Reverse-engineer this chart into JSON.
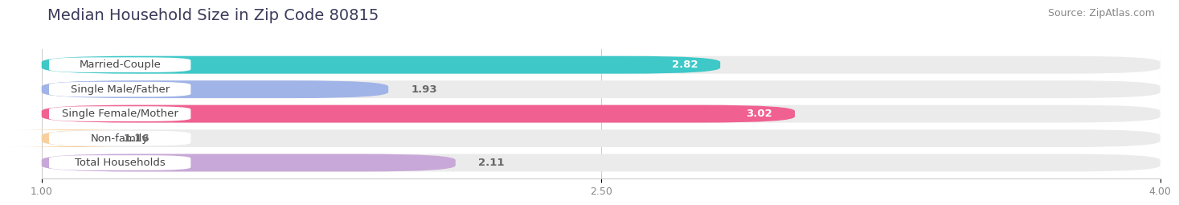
{
  "title": "Median Household Size in Zip Code 80815",
  "source": "Source: ZipAtlas.com",
  "categories": [
    "Married-Couple",
    "Single Male/Father",
    "Single Female/Mother",
    "Non-family",
    "Total Households"
  ],
  "values": [
    2.82,
    1.93,
    3.02,
    1.16,
    2.11
  ],
  "bar_colors": [
    "#3ec8c8",
    "#a0b4e8",
    "#f06090",
    "#f8d0a0",
    "#c8a8d8"
  ],
  "value_colors": [
    "#ffffff",
    "#555555",
    "#ffffff",
    "#555555",
    "#555555"
  ],
  "xlim_left": 1.0,
  "xlim_right": 4.0,
  "xticks": [
    1.0,
    2.5,
    4.0
  ],
  "background_color": "#ffffff",
  "bar_bg_color": "#ebebeb",
  "title_fontsize": 14,
  "label_fontsize": 9.5,
  "value_fontsize": 9.5,
  "tick_fontsize": 9,
  "source_fontsize": 9
}
